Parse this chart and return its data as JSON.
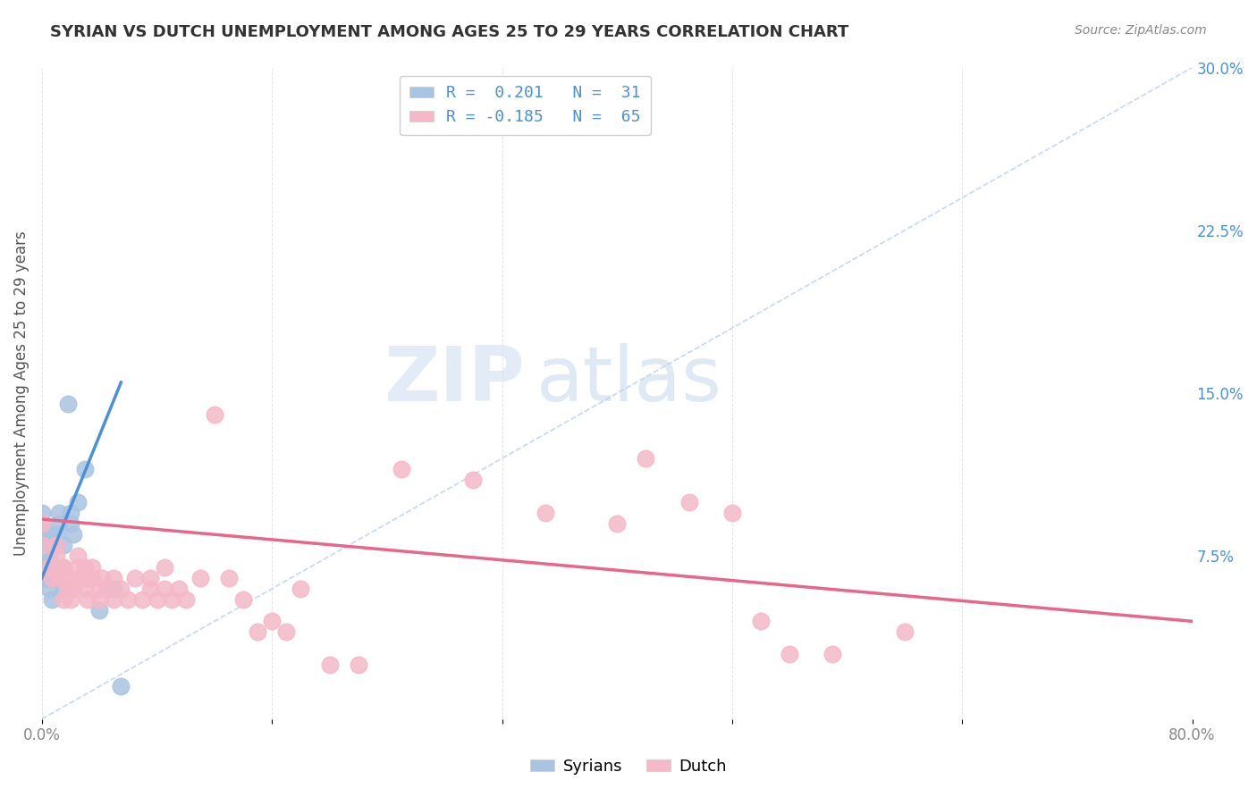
{
  "title": "SYRIAN VS DUTCH UNEMPLOYMENT AMONG AGES 25 TO 29 YEARS CORRELATION CHART",
  "source": "Source: ZipAtlas.com",
  "xlabel": "",
  "ylabel": "Unemployment Among Ages 25 to 29 years",
  "xlim": [
    0.0,
    0.8
  ],
  "ylim": [
    0.0,
    0.3
  ],
  "xticks": [
    0.0,
    0.16,
    0.32,
    0.48,
    0.64,
    0.8
  ],
  "xticklabels": [
    "0.0%",
    "",
    "",
    "",
    "",
    "80.0%"
  ],
  "yticks_right": [
    0.0,
    0.075,
    0.15,
    0.225,
    0.3
  ],
  "yticklabels_right": [
    "",
    "7.5%",
    "15.0%",
    "22.5%",
    "30.0%"
  ],
  "legend_blue_r": "0.201",
  "legend_blue_n": "31",
  "legend_pink_r": "-0.185",
  "legend_pink_n": "65",
  "legend_label_syrians": "Syrians",
  "legend_label_dutch": "Dutch",
  "blue_color": "#a8c4e0",
  "pink_color": "#f4b8c8",
  "blue_line_color": "#4a90d9",
  "pink_line_color": "#e8668a",
  "dashed_line_color": "#b0c8e8",
  "watermark_zip": "ZIP",
  "watermark_atlas": "atlas",
  "syrians_x": [
    0.0,
    0.0,
    0.0,
    0.0,
    0.0,
    0.0,
    0.0,
    0.005,
    0.005,
    0.005,
    0.005,
    0.005,
    0.005,
    0.007,
    0.007,
    0.01,
    0.01,
    0.012,
    0.012,
    0.015,
    0.015,
    0.015,
    0.018,
    0.02,
    0.02,
    0.022,
    0.025,
    0.03,
    0.04,
    0.05,
    0.055
  ],
  "syrians_y": [
    0.065,
    0.07,
    0.075,
    0.08,
    0.085,
    0.09,
    0.095,
    0.06,
    0.065,
    0.07,
    0.075,
    0.08,
    0.085,
    0.055,
    0.065,
    0.08,
    0.085,
    0.09,
    0.095,
    0.06,
    0.07,
    0.08,
    0.145,
    0.09,
    0.095,
    0.085,
    0.1,
    0.115,
    0.05,
    0.06,
    0.015
  ],
  "dutch_x": [
    0.0,
    0.0,
    0.005,
    0.007,
    0.01,
    0.01,
    0.012,
    0.012,
    0.015,
    0.015,
    0.015,
    0.018,
    0.018,
    0.02,
    0.02,
    0.022,
    0.025,
    0.025,
    0.025,
    0.03,
    0.03,
    0.03,
    0.032,
    0.032,
    0.035,
    0.035,
    0.04,
    0.04,
    0.042,
    0.045,
    0.05,
    0.05,
    0.055,
    0.06,
    0.065,
    0.07,
    0.075,
    0.075,
    0.08,
    0.085,
    0.085,
    0.09,
    0.095,
    0.1,
    0.11,
    0.12,
    0.13,
    0.14,
    0.15,
    0.16,
    0.17,
    0.18,
    0.2,
    0.22,
    0.25,
    0.3,
    0.35,
    0.4,
    0.42,
    0.45,
    0.48,
    0.5,
    0.52,
    0.55,
    0.6
  ],
  "dutch_y": [
    0.08,
    0.09,
    0.07,
    0.065,
    0.075,
    0.08,
    0.065,
    0.07,
    0.055,
    0.065,
    0.07,
    0.06,
    0.065,
    0.055,
    0.065,
    0.06,
    0.065,
    0.07,
    0.075,
    0.06,
    0.065,
    0.07,
    0.055,
    0.065,
    0.065,
    0.07,
    0.055,
    0.06,
    0.065,
    0.06,
    0.055,
    0.065,
    0.06,
    0.055,
    0.065,
    0.055,
    0.06,
    0.065,
    0.055,
    0.06,
    0.07,
    0.055,
    0.06,
    0.055,
    0.065,
    0.14,
    0.065,
    0.055,
    0.04,
    0.045,
    0.04,
    0.06,
    0.025,
    0.025,
    0.115,
    0.11,
    0.095,
    0.09,
    0.12,
    0.1,
    0.095,
    0.045,
    0.03,
    0.03,
    0.04
  ],
  "blue_trendline_x": [
    0.0,
    0.055
  ],
  "blue_trendline_y": [
    0.065,
    0.155
  ],
  "pink_trendline_x": [
    0.0,
    0.8
  ],
  "pink_trendline_y": [
    0.092,
    0.045
  ],
  "dashed_trendline_x": [
    0.0,
    0.8
  ],
  "dashed_trendline_y": [
    0.0,
    0.3
  ]
}
